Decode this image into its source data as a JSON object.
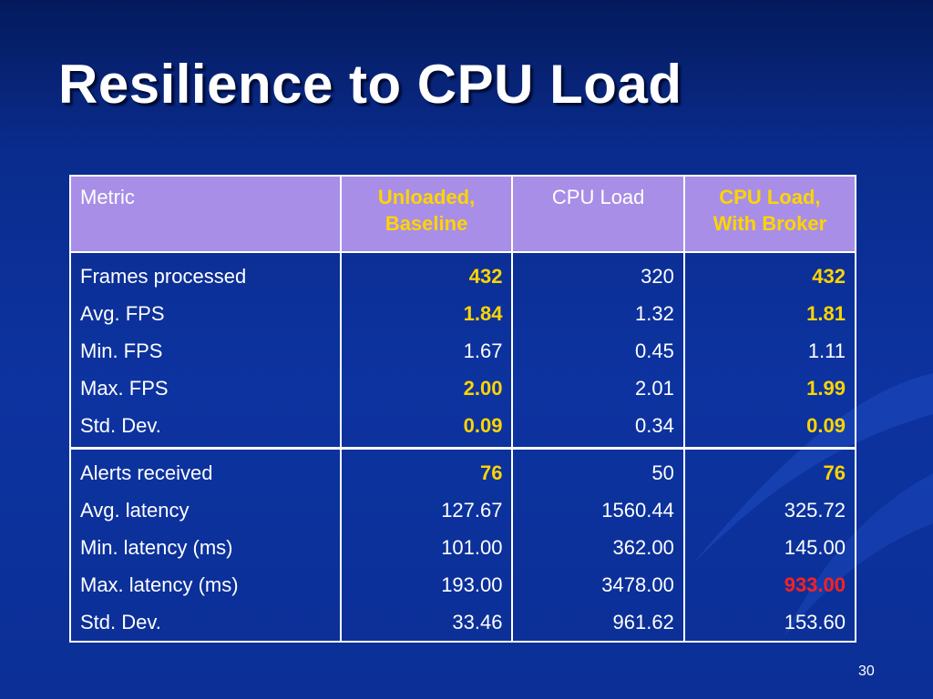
{
  "slide": {
    "title": "Resilience to CPU Load",
    "page_number": "30"
  },
  "colors": {
    "background": "#0b2f96",
    "header_fill": "#a88ee6",
    "highlight_text": "#ffd400",
    "warning_text": "#ff2020"
  },
  "table": {
    "headers": [
      "Metric",
      "Unloaded,\nBaseline",
      "CPU Load",
      "CPU Load,\nWith Broker"
    ],
    "groups": [
      {
        "rows": [
          {
            "metric": "Frames processed",
            "values": [
              "432",
              "320",
              "432"
            ]
          },
          {
            "metric": "Avg. FPS",
            "values": [
              "1.84",
              "1.32",
              "1.81"
            ]
          },
          {
            "metric": "Min. FPS",
            "values": [
              "1.67",
              "0.45",
              "1.11"
            ]
          },
          {
            "metric": "Max. FPS",
            "values": [
              "2.00",
              "2.01",
              "1.99"
            ]
          },
          {
            "metric": "Std. Dev.",
            "values": [
              "0.09",
              "0.34",
              "0.09"
            ]
          }
        ]
      },
      {
        "rows": [
          {
            "metric": "Alerts received",
            "values": [
              "76",
              "50",
              "76"
            ]
          },
          {
            "metric": "Avg. latency",
            "values": [
              "127.67",
              "1560.44",
              "325.72"
            ]
          },
          {
            "metric": "Min. latency (ms)",
            "values": [
              "101.00",
              "362.00",
              "145.00"
            ]
          },
          {
            "metric": "Max. latency (ms)",
            "values": [
              "193.00",
              "3478.00",
              "933.00"
            ]
          },
          {
            "metric": "Std. Dev.",
            "values": [
              "33.46",
              "961.62",
              "153.60"
            ]
          }
        ]
      }
    ]
  }
}
